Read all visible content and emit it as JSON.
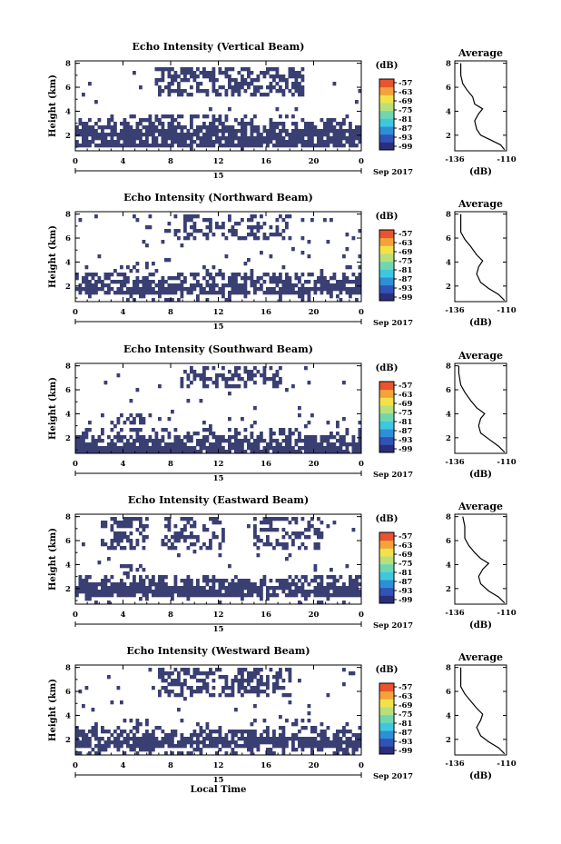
{
  "figure": {
    "date_label": "Sep 2017",
    "day_label": "15",
    "xlabel": "Local Time",
    "ylabel": "Height (km)",
    "colorbar_unit": "(dB)",
    "avg_title": "Average",
    "avg_xlabel": "(dB)",
    "colors": {
      "echo": "#3a3f73",
      "colorbar": [
        "#2b2f7a",
        "#3153b8",
        "#2f8fd6",
        "#3ec8e0",
        "#6fd7b0",
        "#b8e07a",
        "#f2e24a",
        "#f6a23a",
        "#e8542e"
      ]
    }
  },
  "chart_data": [
    {
      "type": "heatmap",
      "title": "Echo Intensity (Vertical Beam)",
      "xlim": [
        0,
        24
      ],
      "ylim": [
        0.7,
        8.2
      ],
      "xticks": [
        "0",
        "4",
        "8",
        "12",
        "16",
        "20",
        "0"
      ],
      "yticks": [
        "2",
        "4",
        "6",
        "8"
      ],
      "colorbar_ticks": [
        "-57",
        "-63",
        "-69",
        "-75",
        "-81",
        "-87",
        "-93",
        "-99"
      ],
      "average_profile": {
        "xlim": [
          -136,
          -110
        ],
        "xticks": [
          "-136",
          "-110"
        ],
        "ylim": [
          0.7,
          8.2
        ],
        "yticks": [
          "2",
          "4",
          "6",
          "8"
        ],
        "values": [
          [
            -111,
            0.8
          ],
          [
            -113,
            1.2
          ],
          [
            -118,
            1.6
          ],
          [
            -123,
            2.0
          ],
          [
            -125,
            2.5
          ],
          [
            -126,
            3.2
          ],
          [
            -124,
            3.8
          ],
          [
            -122,
            4.2
          ],
          [
            -126,
            4.6
          ],
          [
            -127,
            5.2
          ],
          [
            -130,
            5.8
          ],
          [
            -132,
            6.3
          ],
          [
            -133,
            7.0
          ],
          [
            -133,
            8.0
          ]
        ]
      }
    },
    {
      "type": "heatmap",
      "title": "Echo Intensity (Northward Beam)",
      "xlim": [
        0,
        24
      ],
      "ylim": [
        0.7,
        8.2
      ],
      "xticks": [
        "0",
        "4",
        "8",
        "12",
        "16",
        "20",
        "0"
      ],
      "yticks": [
        "2",
        "4",
        "6",
        "8"
      ],
      "colorbar_ticks": [
        "-57",
        "-63",
        "-69",
        "-75",
        "-81",
        "-87",
        "-93",
        "-99"
      ],
      "average_profile": {
        "xlim": [
          -136,
          -110
        ],
        "xticks": [
          "-136",
          "-110"
        ],
        "ylim": [
          0.7,
          8.2
        ],
        "yticks": [
          "2",
          "4",
          "6",
          "8"
        ],
        "values": [
          [
            -111,
            0.8
          ],
          [
            -114,
            1.3
          ],
          [
            -119,
            1.8
          ],
          [
            -123,
            2.3
          ],
          [
            -125,
            3.0
          ],
          [
            -124,
            3.6
          ],
          [
            -122,
            4.1
          ],
          [
            -125,
            4.6
          ],
          [
            -128,
            5.3
          ],
          [
            -131,
            5.9
          ],
          [
            -133,
            6.5
          ],
          [
            -133,
            7.5
          ],
          [
            -133,
            8.0
          ]
        ]
      }
    },
    {
      "type": "heatmap",
      "title": "Echo Intensity (Southward Beam)",
      "xlim": [
        0,
        24
      ],
      "ylim": [
        0.7,
        8.2
      ],
      "xticks": [
        "0",
        "4",
        "8",
        "12",
        "16",
        "20",
        "0"
      ],
      "yticks": [
        "2",
        "4",
        "6",
        "8"
      ],
      "colorbar_ticks": [
        "-57",
        "-63",
        "-69",
        "-75",
        "-81",
        "-87",
        "-93",
        "-99"
      ],
      "average_profile": {
        "xlim": [
          -136,
          -110
        ],
        "xticks": [
          "-136",
          "-110"
        ],
        "ylim": [
          0.7,
          8.2
        ],
        "yticks": [
          "2",
          "4",
          "6",
          "8"
        ],
        "values": [
          [
            -111,
            0.8
          ],
          [
            -114,
            1.3
          ],
          [
            -119,
            1.9
          ],
          [
            -123,
            2.4
          ],
          [
            -124,
            3.0
          ],
          [
            -123,
            3.6
          ],
          [
            -121,
            4.0
          ],
          [
            -125,
            4.5
          ],
          [
            -128,
            5.1
          ],
          [
            -131,
            5.8
          ],
          [
            -133,
            6.4
          ],
          [
            -134,
            7.4
          ],
          [
            -134,
            8.0
          ]
        ]
      }
    },
    {
      "type": "heatmap",
      "title": "Echo Intensity (Eastward Beam)",
      "xlim": [
        0,
        24
      ],
      "ylim": [
        0.7,
        8.2
      ],
      "xticks": [
        "0",
        "4",
        "8",
        "12",
        "16",
        "20",
        "0"
      ],
      "yticks": [
        "2",
        "4",
        "6",
        "8"
      ],
      "colorbar_ticks": [
        "-57",
        "-63",
        "-69",
        "-75",
        "-81",
        "-87",
        "-93",
        "-99"
      ],
      "average_profile": {
        "xlim": [
          -136,
          -110
        ],
        "xticks": [
          "-136",
          "-110"
        ],
        "ylim": [
          0.7,
          8.2
        ],
        "yticks": [
          "2",
          "4",
          "6",
          "8"
        ],
        "values": [
          [
            -111,
            0.8
          ],
          [
            -114,
            1.3
          ],
          [
            -119,
            1.8
          ],
          [
            -123,
            2.4
          ],
          [
            -124,
            3.0
          ],
          [
            -122,
            3.6
          ],
          [
            -119,
            4.1
          ],
          [
            -123,
            4.5
          ],
          [
            -126,
            5.0
          ],
          [
            -129,
            5.6
          ],
          [
            -131,
            6.2
          ],
          [
            -131,
            7.2
          ],
          [
            -132,
            8.0
          ]
        ]
      }
    },
    {
      "type": "heatmap",
      "title": "Echo Intensity (Westward Beam)",
      "xlim": [
        0,
        24
      ],
      "ylim": [
        0.7,
        8.2
      ],
      "xticks": [
        "0",
        "4",
        "8",
        "12",
        "16",
        "20",
        "0"
      ],
      "yticks": [
        "2",
        "4",
        "6",
        "8"
      ],
      "colorbar_ticks": [
        "-57",
        "-63",
        "-69",
        "-75",
        "-81",
        "-87",
        "-93",
        "-99"
      ],
      "average_profile": {
        "xlim": [
          -136,
          -110
        ],
        "xticks": [
          "-136",
          "-110"
        ],
        "ylim": [
          0.7,
          8.2
        ],
        "yticks": [
          "2",
          "4",
          "6",
          "8"
        ],
        "values": [
          [
            -111,
            0.8
          ],
          [
            -114,
            1.3
          ],
          [
            -119,
            1.8
          ],
          [
            -123,
            2.3
          ],
          [
            -125,
            3.0
          ],
          [
            -123,
            3.6
          ],
          [
            -122,
            4.1
          ],
          [
            -125,
            4.6
          ],
          [
            -128,
            5.2
          ],
          [
            -131,
            5.8
          ],
          [
            -133,
            6.4
          ],
          [
            -133,
            7.4
          ],
          [
            -133,
            8.0
          ]
        ]
      }
    }
  ]
}
